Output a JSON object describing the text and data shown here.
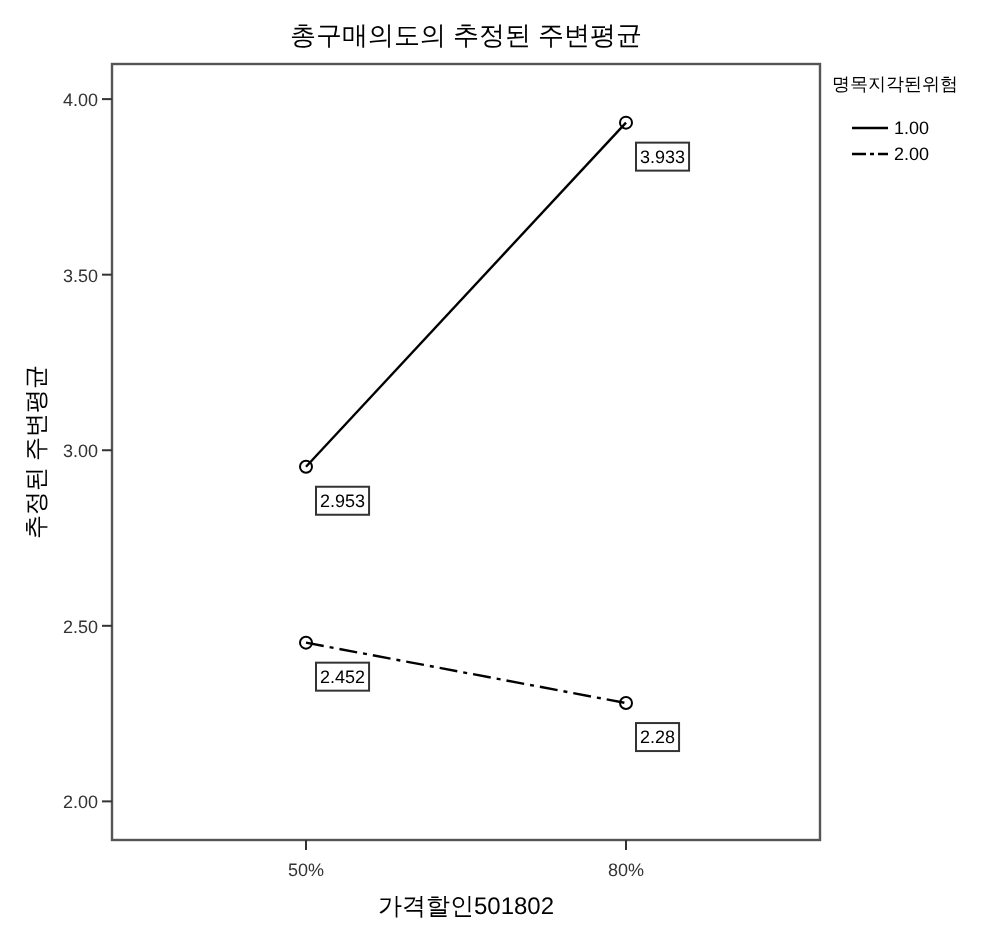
{
  "chart_data": {
    "type": "line",
    "title": "총구매의도의 추정된 주변평균",
    "xlabel": "가격할인501802",
    "ylabel": "추정된 주변평균",
    "legend_title": "명목지각된위험",
    "categories": [
      "50%",
      "80%"
    ],
    "series": [
      {
        "name": "1.00",
        "color": "#000000",
        "values": [
          2.953,
          3.933
        ],
        "line_style": "solid"
      },
      {
        "name": "2.00",
        "color": "#000000",
        "values": [
          2.452,
          2.28
        ],
        "line_style": "dashed"
      }
    ],
    "ylim": [
      1.89,
      4.1
    ],
    "yticks": [
      {
        "value": 2,
        "label": "2.00"
      },
      {
        "value": 2.5,
        "label": "2.50"
      },
      {
        "value": 3,
        "label": "3.00"
      },
      {
        "value": 3.5,
        "label": "3.50"
      },
      {
        "value": 4,
        "label": "4.00"
      }
    ],
    "grid": false,
    "legend": "right",
    "marker": "circle",
    "data_labels": true
  }
}
